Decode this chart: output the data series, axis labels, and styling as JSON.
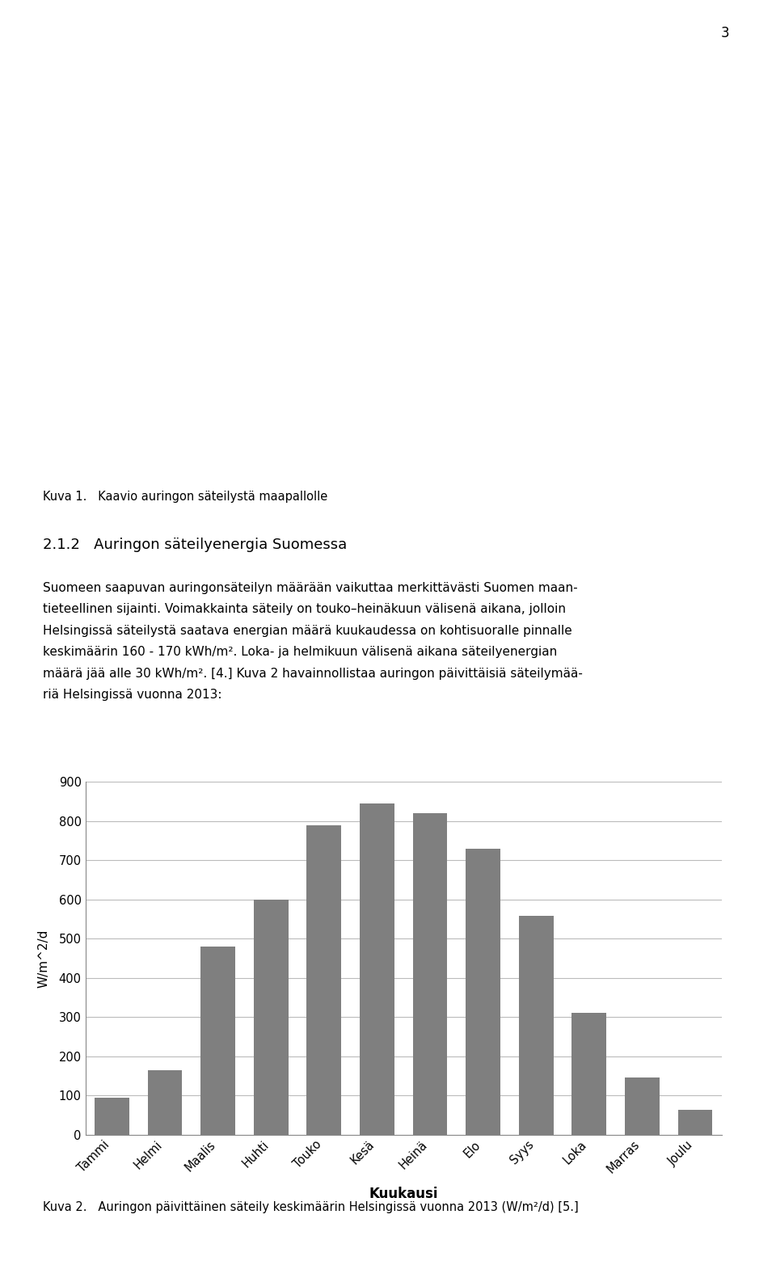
{
  "categories": [
    "Tammi",
    "Helmi",
    "Maalis",
    "Huhti",
    "Touko",
    "Kesä",
    "Heinä",
    "Elo",
    "Syys",
    "Loka",
    "Marras",
    "Joulu"
  ],
  "values": [
    95,
    165,
    480,
    600,
    790,
    845,
    820,
    730,
    558,
    310,
    145,
    63
  ],
  "bar_color": "#7f7f7f",
  "ylabel": "W/m^2/d",
  "xlabel": "Kuukausi",
  "xlabel_fontsize": 12,
  "xlabel_fontweight": "bold",
  "ylabel_fontsize": 11,
  "tick_fontsize": 10.5,
  "ylim": [
    0,
    900
  ],
  "yticks": [
    0,
    100,
    200,
    300,
    400,
    500,
    600,
    700,
    800,
    900
  ],
  "grid_color": "#bbbbbb",
  "background_color": "#ffffff",
  "page_number": "3",
  "fig_caption": "Kuva 2.   Auringon päivittäinen säteily keskimäärin Helsingissä vuonna 2013 (W/m²/d) [5.]",
  "kuva1_caption": "Kuva 1.   Kaavio auringon säteilystä maapallolle",
  "section_heading": "2.1.2   Auringon säteilyenergia Suomessa",
  "para_line1": "Suomeen saapuvan auringonsäteilyn määrään vaikuttaa merkittävästi Suomen maan-",
  "para_line2": "tieteellinen sijainti. Voimakkainta säteily on touko–heinäkuun välisenä aikana, jolloin",
  "para_line3": "Helsingissä säteilystä saatava energian määrä kuukaudessa on kohtisuoralle pinnalle",
  "para_line4": "keskimäärin 160 - 170 kWh/m². Loka- ja helmikuun välisenä aikana säteilyenergian",
  "para_line5": "määrä jää alle 30 kWh/m². [4.] Kuva 2 havainnollistaa auringon päivittäisiä säteilymää-",
  "para_line6": "riä Helsingissä vuonna 2013:"
}
